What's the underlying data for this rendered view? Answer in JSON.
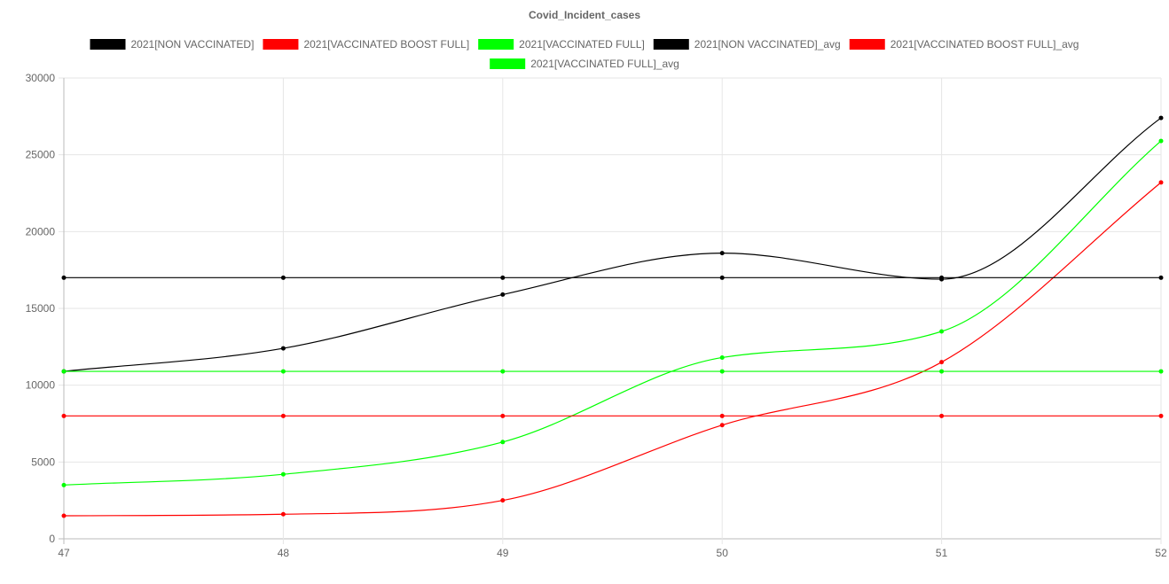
{
  "chart_data": {
    "type": "line",
    "title": "Covid_Incident_cases",
    "xlabel": "",
    "ylabel": "",
    "x": [
      47,
      48,
      49,
      50,
      51,
      52
    ],
    "x_tick_labels": [
      "47",
      "48",
      "49",
      "50",
      "51",
      "52"
    ],
    "ylim": [
      0,
      30000
    ],
    "y_ticks": [
      0,
      5000,
      10000,
      15000,
      20000,
      25000,
      30000
    ],
    "y_tick_labels": [
      "0",
      "5000",
      "10000",
      "15000",
      "20000",
      "25000",
      "30000"
    ],
    "grid": true,
    "legend_position": "top",
    "series": [
      {
        "name": "2021[NON VACCINATED]",
        "color": "#000000",
        "values": [
          10900,
          12400,
          15900,
          18600,
          16900,
          27400
        ]
      },
      {
        "name": "2021[VACCINATED BOOST FULL]",
        "color": "#ff0000",
        "values": [
          1500,
          1600,
          2500,
          7400,
          11500,
          23200
        ]
      },
      {
        "name": "2021[VACCINATED FULL]",
        "color": "#00ff00",
        "values": [
          3500,
          4200,
          6300,
          11800,
          13500,
          25900
        ]
      },
      {
        "name": "2021[NON VACCINATED]_avg",
        "color": "#000000",
        "values": [
          17000,
          17000,
          17000,
          17000,
          17000,
          17000
        ]
      },
      {
        "name": "2021[VACCINATED BOOST FULL]_avg",
        "color": "#ff0000",
        "values": [
          8000,
          8000,
          8000,
          8000,
          8000,
          8000
        ]
      },
      {
        "name": "2021[VACCINATED FULL]_avg",
        "color": "#00ff00",
        "values": [
          10900,
          10900,
          10900,
          10900,
          10900,
          10900
        ]
      }
    ]
  }
}
